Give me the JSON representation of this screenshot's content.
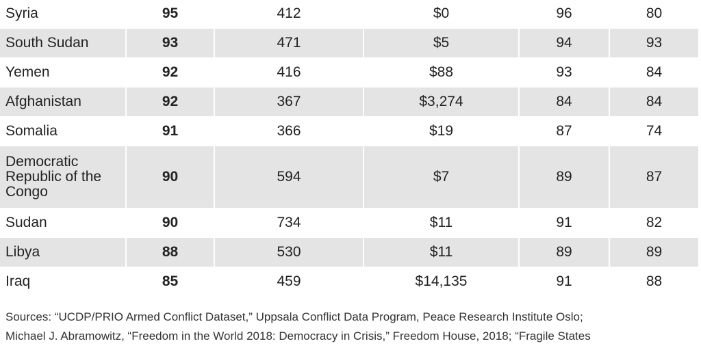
{
  "table": {
    "rows": [
      {
        "country": "Syria",
        "score": "95",
        "col2": "412",
        "col3": "$0",
        "col4": "96",
        "col5": "80"
      },
      {
        "country": "South Sudan",
        "score": "93",
        "col2": "471",
        "col3": "$5",
        "col4": "94",
        "col5": "93"
      },
      {
        "country": "Yemen",
        "score": "92",
        "col2": "416",
        "col3": "$88",
        "col4": "93",
        "col5": "84"
      },
      {
        "country": "Afghanistan",
        "score": "92",
        "col2": "367",
        "col3": "$3,274",
        "col4": "84",
        "col5": "84"
      },
      {
        "country": "Somalia",
        "score": "91",
        "col2": "366",
        "col3": "$19",
        "col4": "87",
        "col5": "74"
      },
      {
        "country": "Democratic Republic of the Congo",
        "score": "90",
        "col2": "594",
        "col3": "$7",
        "col4": "89",
        "col5": "87"
      },
      {
        "country": "Sudan",
        "score": "90",
        "col2": "734",
        "col3": "$11",
        "col4": "91",
        "col5": "82"
      },
      {
        "country": "Libya",
        "score": "88",
        "col2": "530",
        "col3": "$11",
        "col4": "89",
        "col5": "89"
      },
      {
        "country": "Iraq",
        "score": "85",
        "col2": "459",
        "col3": "$14,135",
        "col4": "91",
        "col5": "88"
      }
    ]
  },
  "sources": {
    "line1": "Sources: “UCDP/PRIO Armed Conflict Dataset,” Uppsala Conflict Data Program, Peace Research Institute Oslo;",
    "line2": "Michael J. Abramowitz, “Freedom in the World 2018: Democracy in Crisis,” Freedom House, 2018; “Fragile States"
  },
  "colors": {
    "shaded_row": "#e4e4e4",
    "text": "#222222"
  }
}
